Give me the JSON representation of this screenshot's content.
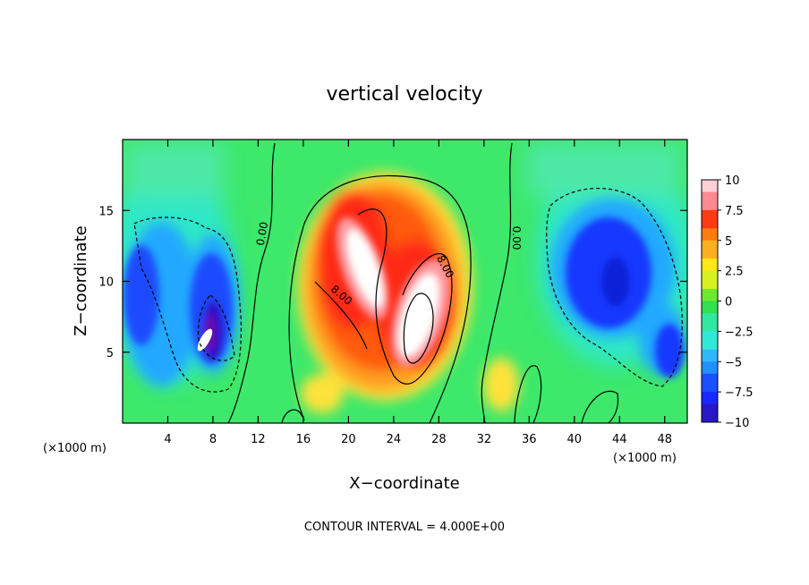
{
  "chart_data": {
    "type": "heatmap",
    "title": "vertical velocity",
    "xlabel": "X−coordinate",
    "ylabel": "Z−coordinate",
    "x_unit": "(×1000 m)",
    "y_unit": "(×1000 m)",
    "footer": "CONTOUR INTERVAL = 4.000E+00",
    "xlim": [
      0,
      50
    ],
    "ylim": [
      0,
      20
    ],
    "x_ticks": [
      4,
      8,
      12,
      16,
      20,
      24,
      28,
      32,
      36,
      40,
      44,
      48
    ],
    "y_ticks": [
      5,
      10,
      15
    ],
    "colorbar": {
      "min": -10,
      "max": 10,
      "ticks": [
        10,
        7.5,
        5,
        2.5,
        0,
        -2.5,
        -5,
        -7.5,
        -10
      ],
      "tick_labels": [
        "10",
        "7.5",
        "5",
        "2.5",
        "0",
        "−2.5",
        "−5",
        "−7.5",
        "−10"
      ]
    },
    "contour_labels": [
      {
        "text": "0.00",
        "x": 12.6,
        "y": 13.2
      },
      {
        "text": "0.00",
        "x": 34.2,
        "y": 13.0
      },
      {
        "text": "8.00",
        "x": 28.3,
        "y": 11.0
      },
      {
        "text": "8.00",
        "x": 19.0,
        "y": 8.7
      }
    ],
    "features": [
      {
        "name": "strong updraft (two lobes)",
        "x_range": [
          17,
          31
        ],
        "z_range": [
          1,
          17
        ],
        "max": 10
      },
      {
        "name": "downdraft left",
        "x_range": [
          0,
          10
        ],
        "z_range": [
          1,
          14
        ],
        "min": -10
      },
      {
        "name": "downdraft right",
        "x_range": [
          37,
          50
        ],
        "z_range": [
          3,
          16
        ],
        "min": -8
      }
    ]
  }
}
